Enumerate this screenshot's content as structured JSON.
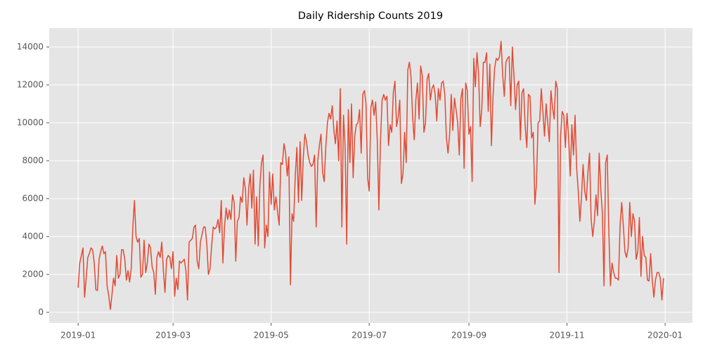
{
  "chart_data": {
    "type": "line",
    "title": "Daily Ridership Counts 2019",
    "x": [
      "2019-01-01",
      "2019-01-02",
      "2019-01-03",
      "2019-01-04",
      "2019-01-05",
      "2019-01-06",
      "2019-01-07",
      "2019-01-08",
      "2019-01-09",
      "2019-01-10",
      "2019-01-11",
      "2019-01-12",
      "2019-01-13",
      "2019-01-14",
      "2019-01-15",
      "2019-01-16",
      "2019-01-17",
      "2019-01-18",
      "2019-01-19",
      "2019-01-20",
      "2019-01-21",
      "2019-01-22",
      "2019-01-23",
      "2019-01-24",
      "2019-01-25",
      "2019-01-26",
      "2019-01-27",
      "2019-01-28",
      "2019-01-29",
      "2019-01-30",
      "2019-01-31",
      "2019-02-01",
      "2019-02-02",
      "2019-02-03",
      "2019-02-04",
      "2019-02-05",
      "2019-02-06",
      "2019-02-07",
      "2019-02-08",
      "2019-02-09",
      "2019-02-10",
      "2019-02-11",
      "2019-02-12",
      "2019-02-13",
      "2019-02-14",
      "2019-02-15",
      "2019-02-16",
      "2019-02-17",
      "2019-02-18",
      "2019-02-19",
      "2019-02-20",
      "2019-02-21",
      "2019-02-22",
      "2019-02-23",
      "2019-02-24",
      "2019-02-25",
      "2019-02-26",
      "2019-02-27",
      "2019-02-28",
      "2019-03-01",
      "2019-03-02",
      "2019-03-03",
      "2019-03-04",
      "2019-03-05",
      "2019-03-06",
      "2019-03-07",
      "2019-03-08",
      "2019-03-09",
      "2019-03-10",
      "2019-03-11",
      "2019-03-12",
      "2019-03-13",
      "2019-03-14",
      "2019-03-15",
      "2019-03-16",
      "2019-03-17",
      "2019-03-18",
      "2019-03-19",
      "2019-03-20",
      "2019-03-21",
      "2019-03-22",
      "2019-03-23",
      "2019-03-24",
      "2019-03-25",
      "2019-03-26",
      "2019-03-27",
      "2019-03-28",
      "2019-03-29",
      "2019-03-30",
      "2019-03-31",
      "2019-04-01",
      "2019-04-02",
      "2019-04-03",
      "2019-04-04",
      "2019-04-05",
      "2019-04-06",
      "2019-04-07",
      "2019-04-08",
      "2019-04-09",
      "2019-04-10",
      "2019-04-11",
      "2019-04-12",
      "2019-04-13",
      "2019-04-14",
      "2019-04-15",
      "2019-04-16",
      "2019-04-17",
      "2019-04-18",
      "2019-04-19",
      "2019-04-20",
      "2019-04-21",
      "2019-04-22",
      "2019-04-23",
      "2019-04-24",
      "2019-04-25",
      "2019-04-26",
      "2019-04-27",
      "2019-04-28",
      "2019-04-29",
      "2019-04-30",
      "2019-05-01",
      "2019-05-02",
      "2019-05-03",
      "2019-05-04",
      "2019-05-05",
      "2019-05-06",
      "2019-05-07",
      "2019-05-08",
      "2019-05-09",
      "2019-05-10",
      "2019-05-11",
      "2019-05-12",
      "2019-05-13",
      "2019-05-14",
      "2019-05-15",
      "2019-05-16",
      "2019-05-17",
      "2019-05-18",
      "2019-05-19",
      "2019-05-20",
      "2019-05-21",
      "2019-05-22",
      "2019-05-23",
      "2019-05-24",
      "2019-05-25",
      "2019-05-26",
      "2019-05-27",
      "2019-05-28",
      "2019-05-29",
      "2019-05-30",
      "2019-05-31",
      "2019-06-01",
      "2019-06-02",
      "2019-06-03",
      "2019-06-04",
      "2019-06-05",
      "2019-06-06",
      "2019-06-07",
      "2019-06-08",
      "2019-06-09",
      "2019-06-10",
      "2019-06-11",
      "2019-06-12",
      "2019-06-13",
      "2019-06-14",
      "2019-06-15",
      "2019-06-16",
      "2019-06-17",
      "2019-06-18",
      "2019-06-19",
      "2019-06-20",
      "2019-06-21",
      "2019-06-22",
      "2019-06-23",
      "2019-06-24",
      "2019-06-25",
      "2019-06-26",
      "2019-06-27",
      "2019-06-28",
      "2019-06-29",
      "2019-06-30",
      "2019-07-01",
      "2019-07-02",
      "2019-07-03",
      "2019-07-04",
      "2019-07-05",
      "2019-07-06",
      "2019-07-07",
      "2019-07-08",
      "2019-07-09",
      "2019-07-10",
      "2019-07-11",
      "2019-07-12",
      "2019-07-13",
      "2019-07-14",
      "2019-07-15",
      "2019-07-16",
      "2019-07-17",
      "2019-07-18",
      "2019-07-19",
      "2019-07-20",
      "2019-07-21",
      "2019-07-22",
      "2019-07-23",
      "2019-07-24",
      "2019-07-25",
      "2019-07-26",
      "2019-07-27",
      "2019-07-28",
      "2019-07-29",
      "2019-07-30",
      "2019-07-31",
      "2019-08-01",
      "2019-08-02",
      "2019-08-03",
      "2019-08-04",
      "2019-08-05",
      "2019-08-06",
      "2019-08-07",
      "2019-08-08",
      "2019-08-09",
      "2019-08-10",
      "2019-08-11",
      "2019-08-12",
      "2019-08-13",
      "2019-08-14",
      "2019-08-15",
      "2019-08-16",
      "2019-08-17",
      "2019-08-18",
      "2019-08-19",
      "2019-08-20",
      "2019-08-21",
      "2019-08-22",
      "2019-08-23",
      "2019-08-24",
      "2019-08-25",
      "2019-08-26",
      "2019-08-27",
      "2019-08-28",
      "2019-08-29",
      "2019-08-30",
      "2019-08-31",
      "2019-09-01",
      "2019-09-02",
      "2019-09-03",
      "2019-09-04",
      "2019-09-05",
      "2019-09-06",
      "2019-09-07",
      "2019-09-08",
      "2019-09-09",
      "2019-09-10",
      "2019-09-11",
      "2019-09-12",
      "2019-09-13",
      "2019-09-14",
      "2019-09-15",
      "2019-09-16",
      "2019-09-17",
      "2019-09-18",
      "2019-09-19",
      "2019-09-20",
      "2019-09-21",
      "2019-09-22",
      "2019-09-23",
      "2019-09-24",
      "2019-09-25",
      "2019-09-26",
      "2019-09-27",
      "2019-09-28",
      "2019-09-29",
      "2019-09-30",
      "2019-10-01",
      "2019-10-02",
      "2019-10-03",
      "2019-10-04",
      "2019-10-05",
      "2019-10-06",
      "2019-10-07",
      "2019-10-08",
      "2019-10-09",
      "2019-10-10",
      "2019-10-11",
      "2019-10-12",
      "2019-10-13",
      "2019-10-14",
      "2019-10-15",
      "2019-10-16",
      "2019-10-17",
      "2019-10-18",
      "2019-10-19",
      "2019-10-20",
      "2019-10-21",
      "2019-10-22",
      "2019-10-23",
      "2019-10-24",
      "2019-10-25",
      "2019-10-26",
      "2019-10-27",
      "2019-10-28",
      "2019-10-29",
      "2019-10-30",
      "2019-10-31",
      "2019-11-01",
      "2019-11-02",
      "2019-11-03",
      "2019-11-04",
      "2019-11-05",
      "2019-11-06",
      "2019-11-07",
      "2019-11-08",
      "2019-11-09",
      "2019-11-10",
      "2019-11-11",
      "2019-11-12",
      "2019-11-13",
      "2019-11-14",
      "2019-11-15",
      "2019-11-16",
      "2019-11-17",
      "2019-11-18",
      "2019-11-19",
      "2019-11-20",
      "2019-11-21",
      "2019-11-22",
      "2019-11-23",
      "2019-11-24",
      "2019-11-25",
      "2019-11-26",
      "2019-11-27",
      "2019-11-28",
      "2019-11-29",
      "2019-11-30",
      "2019-12-01",
      "2019-12-02",
      "2019-12-03",
      "2019-12-04",
      "2019-12-05",
      "2019-12-06",
      "2019-12-07",
      "2019-12-08",
      "2019-12-09",
      "2019-12-10",
      "2019-12-11",
      "2019-12-12",
      "2019-12-13",
      "2019-12-14",
      "2019-12-15",
      "2019-12-16",
      "2019-12-17",
      "2019-12-18",
      "2019-12-19",
      "2019-12-20",
      "2019-12-21",
      "2019-12-22",
      "2019-12-23",
      "2019-12-24",
      "2019-12-25",
      "2019-12-26",
      "2019-12-27",
      "2019-12-28",
      "2019-12-29",
      "2019-12-30",
      "2019-12-31"
    ],
    "values": [
      1300,
      2600,
      3000,
      3400,
      800,
      1800,
      2900,
      3100,
      3400,
      3300,
      2600,
      1200,
      1150,
      2800,
      3200,
      3500,
      3100,
      3200,
      1400,
      900,
      150,
      900,
      1800,
      1400,
      3000,
      1800,
      2000,
      3300,
      3300,
      2800,
      1700,
      2200,
      1600,
      2300,
      4500,
      5900,
      4000,
      3700,
      3900,
      1850,
      2000,
      3800,
      2100,
      2600,
      3600,
      3400,
      2400,
      2100,
      950,
      2900,
      3200,
      2900,
      3700,
      2200,
      1050,
      2800,
      3000,
      2900,
      2300,
      3200,
      850,
      1800,
      1200,
      2700,
      2600,
      2700,
      2800,
      2200,
      650,
      3700,
      3800,
      3900,
      4500,
      4600,
      2700,
      2300,
      3700,
      4100,
      4500,
      4500,
      3600,
      2000,
      2300,
      3500,
      4500,
      4400,
      4500,
      4900,
      4200,
      5900,
      2600,
      4500,
      5500,
      4900,
      5400,
      4900,
      6200,
      5800,
      2700,
      4800,
      5000,
      6100,
      5800,
      7100,
      6500,
      4600,
      6500,
      7300,
      5500,
      7500,
      3600,
      6100,
      3500,
      6700,
      7900,
      8300,
      3400,
      4600,
      4000,
      7400,
      5700,
      7300,
      5400,
      6100,
      5300,
      4600,
      7900,
      7800,
      8900,
      8400,
      7200,
      8200,
      1450,
      5200,
      4800,
      7200,
      8700,
      5800,
      9000,
      5900,
      8200,
      9400,
      9000,
      8300,
      7900,
      7700,
      7800,
      8300,
      4500,
      8000,
      8800,
      9400,
      7400,
      6900,
      8700,
      10000,
      10500,
      10200,
      10900,
      9600,
      8900,
      10100,
      8000,
      11800,
      4500,
      10400,
      8800,
      3600,
      10700,
      7900,
      11000,
      7100,
      9300,
      9900,
      10000,
      10700,
      8400,
      11500,
      11700,
      11000,
      7100,
      6400,
      10800,
      11200,
      10400,
      11100,
      9100,
      5400,
      9000,
      11200,
      11500,
      11200,
      11400,
      8800,
      9900,
      9500,
      11600,
      12200,
      9800,
      10300,
      11200,
      6800,
      7300,
      9500,
      7900,
      12800,
      13200,
      12400,
      10300,
      9100,
      11200,
      12100,
      10200,
      13000,
      12500,
      9500,
      10000,
      12300,
      12600,
      11200,
      11800,
      12000,
      11500,
      10100,
      11800,
      11200,
      12100,
      12200,
      11500,
      9200,
      8400,
      9400,
      11500,
      9600,
      11300,
      10700,
      10000,
      8300,
      11300,
      11800,
      7600,
      12100,
      11700,
      9400,
      9800,
      6900,
      13400,
      11900,
      13700,
      12600,
      9800,
      10700,
      13200,
      13200,
      13700,
      10600,
      13100,
      8800,
      11400,
      12900,
      13400,
      13300,
      13500,
      14300,
      12500,
      11400,
      13200,
      13400,
      13500,
      10900,
      14000,
      12500,
      10700,
      12000,
      12200,
      9100,
      11600,
      11800,
      9800,
      8700,
      11500,
      11400,
      9200,
      9500,
      5700,
      6800,
      10000,
      10100,
      11800,
      10600,
      9300,
      11000,
      10000,
      9000,
      11700,
      10800,
      10200,
      12200,
      11800,
      2100,
      9300,
      10600,
      10400,
      8700,
      10500,
      9200,
      7200,
      9900,
      8300,
      10400,
      7600,
      6400,
      4800,
      6100,
      7800,
      6400,
      5900,
      7400,
      8400,
      4900,
      4000,
      4800,
      6200,
      5100,
      8400,
      6500,
      5200,
      1400,
      7900,
      8300,
      4300,
      1400,
      2600,
      2100,
      1800,
      1800,
      1700,
      4600,
      5800,
      4600,
      3200,
      2900,
      3400,
      5800,
      4000,
      5200,
      4800,
      2800,
      3200,
      5000,
      1900,
      4000,
      3000,
      2900,
      1700,
      1650,
      3100,
      1700,
      800,
      1700,
      2100,
      2100,
      1800,
      650,
      1800
    ],
    "color": "#E24A33",
    "xlim": [
      "2018-12-14",
      "2020-01-18"
    ],
    "xticks": [
      {
        "value": "2019-01-01",
        "label": "2019-01"
      },
      {
        "value": "2019-03-01",
        "label": "2019-03"
      },
      {
        "value": "2019-05-01",
        "label": "2019-05"
      },
      {
        "value": "2019-07-01",
        "label": "2019-07"
      },
      {
        "value": "2019-09-01",
        "label": "2019-09"
      },
      {
        "value": "2019-11-01",
        "label": "2019-11"
      },
      {
        "value": "2020-01-01",
        "label": "2020-01"
      }
    ],
    "ylim": [
      -560,
      15000
    ],
    "yticks": [
      0,
      2000,
      4000,
      6000,
      8000,
      10000,
      12000,
      14000
    ],
    "grid": true
  }
}
